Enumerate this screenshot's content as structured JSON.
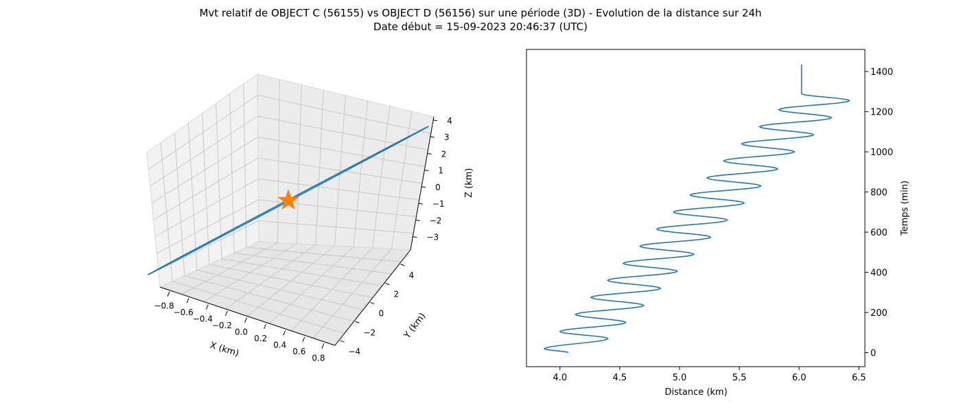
{
  "figure": {
    "title_line1": "Mvt relatif de OBJECT C (56155) vs OBJECT D (56156) sur une période (3D) - Evolution de la distance sur 24h",
    "title_line2": "Date début = 15-09-2023 20:46:37 (UTC)"
  },
  "colors": {
    "series": "#1f77b4",
    "marker": "#ff7f0e",
    "grid": "#b0b0b0",
    "pane": "#f2f2f2"
  },
  "chart_data": [
    {
      "type": "line3d",
      "xlabel": "X (km)",
      "ylabel": "Y (km)",
      "zlabel": "Z (km)",
      "xlim": [
        -0.9,
        0.9
      ],
      "ylim": [
        -4.5,
        5.5
      ],
      "zlim": [
        -3.8,
        4.2
      ],
      "x_ticks": [
        "−0.8",
        "−0.6",
        "−0.4",
        "−0.2",
        "0.0",
        "0.2",
        "0.4",
        "0.6",
        "0.8"
      ],
      "y_ticks": [
        "−4",
        "−2",
        "0",
        "2",
        "4"
      ],
      "z_ticks": [
        "−3",
        "−2",
        "−1",
        "0",
        "1",
        "2",
        "3",
        "4"
      ],
      "marker": {
        "shape": "star",
        "x": 0.0,
        "y": 0.0,
        "z": 0.0
      },
      "series": [
        {
          "orbit": "ellipse",
          "x_amplitude": 0.85,
          "y_amplitude": 4.5,
          "z_amplitude": 3.3
        }
      ],
      "grid": true
    },
    {
      "type": "line",
      "xlabel": "Distance (km)",
      "ylabel": "Temps (min)",
      "xlim": [
        3.72,
        6.55
      ],
      "ylim": [
        -70,
        1510
      ],
      "x_ticks": [
        4.0,
        4.5,
        5.0,
        5.5,
        6.0,
        6.5
      ],
      "y_ticks": [
        0,
        200,
        400,
        600,
        800,
        1000,
        1200,
        1400
      ],
      "y_axis_side": "right",
      "series": [
        {
          "points": [
            [
              4.07,
              0
            ],
            [
              3.87,
              19
            ],
            [
              4.4,
              70
            ],
            [
              4.0,
              105
            ],
            [
              4.55,
              150
            ],
            [
              4.13,
              190
            ],
            [
              4.7,
              235
            ],
            [
              4.26,
              275
            ],
            [
              4.84,
              320
            ],
            [
              4.4,
              360
            ],
            [
              4.98,
              405
            ],
            [
              4.53,
              445
            ],
            [
              5.12,
              490
            ],
            [
              4.67,
              530
            ],
            [
              5.26,
              575
            ],
            [
              4.81,
              615
            ],
            [
              5.4,
              660
            ],
            [
              4.95,
              700
            ],
            [
              5.54,
              745
            ],
            [
              5.09,
              785
            ],
            [
              5.68,
              830
            ],
            [
              5.23,
              870
            ],
            [
              5.82,
              915
            ],
            [
              5.37,
              955
            ],
            [
              5.96,
              1000
            ],
            [
              5.52,
              1040
            ],
            [
              6.12,
              1085
            ],
            [
              5.67,
              1125
            ],
            [
              6.27,
              1170
            ],
            [
              5.83,
              1210
            ],
            [
              6.42,
              1255
            ],
            [
              6.02,
              1290
            ],
            [
              6.02,
              1435
            ]
          ]
        }
      ],
      "grid": false
    }
  ]
}
